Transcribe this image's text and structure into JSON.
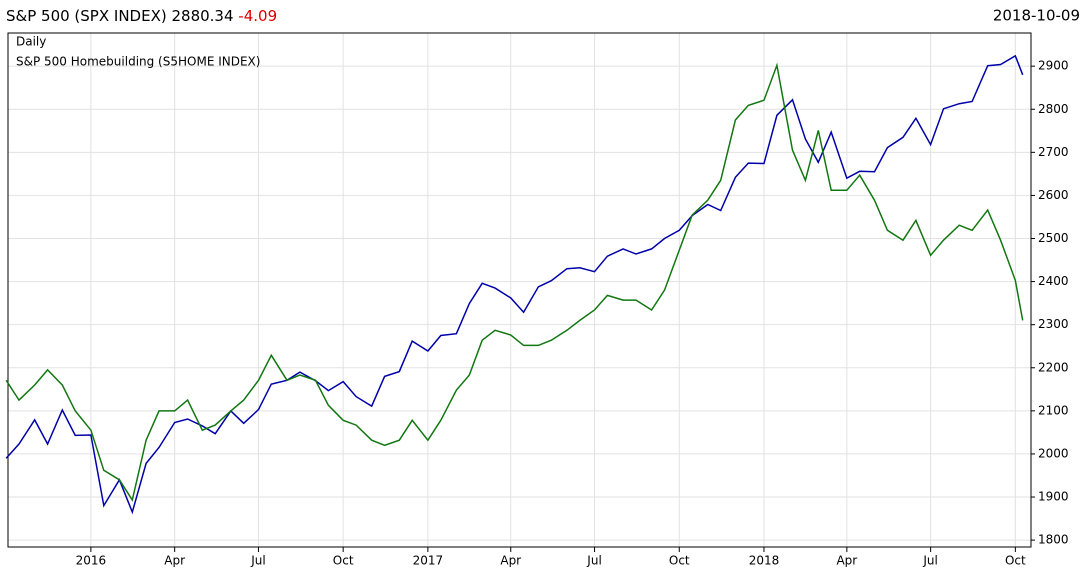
{
  "chart_data": {
    "type": "line",
    "title": "S&P 500 (SPX INDEX)",
    "last": "2880.34",
    "change": "-4.09",
    "change_color": "#dd0000",
    "date": "2018-10-09",
    "x": [
      "2015-10-01",
      "2015-10-15",
      "2015-11-01",
      "2015-11-15",
      "2015-12-01",
      "2015-12-15",
      "2016-01-01",
      "2016-01-15",
      "2016-02-01",
      "2016-02-15",
      "2016-03-01",
      "2016-03-15",
      "2016-04-01",
      "2016-04-15",
      "2016-05-01",
      "2016-05-15",
      "2016-06-01",
      "2016-06-15",
      "2016-07-01",
      "2016-07-15",
      "2016-08-01",
      "2016-08-15",
      "2016-09-01",
      "2016-09-15",
      "2016-10-01",
      "2016-10-15",
      "2016-11-01",
      "2016-11-15",
      "2016-12-01",
      "2016-12-15",
      "2017-01-01",
      "2017-01-15",
      "2017-02-01",
      "2017-02-15",
      "2017-03-01",
      "2017-03-15",
      "2017-04-01",
      "2017-04-15",
      "2017-05-01",
      "2017-05-15",
      "2017-06-01",
      "2017-06-15",
      "2017-07-01",
      "2017-07-15",
      "2017-08-01",
      "2017-08-15",
      "2017-09-01",
      "2017-09-15",
      "2017-10-01",
      "2017-10-15",
      "2017-11-01",
      "2017-11-15",
      "2017-12-01",
      "2017-12-15",
      "2018-01-01",
      "2018-01-15",
      "2018-02-01",
      "2018-02-15",
      "2018-03-01",
      "2018-03-15",
      "2018-04-01",
      "2018-04-15",
      "2018-05-01",
      "2018-05-15",
      "2018-06-01",
      "2018-06-15",
      "2018-07-01",
      "2018-07-15",
      "2018-08-01",
      "2018-08-15",
      "2018-09-01",
      "2018-09-15",
      "2018-10-01",
      "2018-10-09"
    ],
    "series": [
      {
        "name": "Daily",
        "color": "#0000aa",
        "values": [
          1990,
          2023,
          2079,
          2023,
          2102,
          2043,
          2044,
          1880,
          1940,
          1865,
          1978,
          2015,
          2073,
          2081,
          2065,
          2047,
          2100,
          2071,
          2103,
          2162,
          2171,
          2190,
          2170,
          2147,
          2168,
          2133,
          2111,
          2180,
          2191,
          2262,
          2239,
          2275,
          2279,
          2349,
          2396,
          2385,
          2362,
          2329,
          2388,
          2402,
          2430,
          2432,
          2423,
          2459,
          2476,
          2464,
          2476,
          2500,
          2519,
          2553,
          2579,
          2565,
          2642,
          2675,
          2674,
          2786,
          2822,
          2731,
          2677,
          2747,
          2640,
          2656,
          2655,
          2711,
          2735,
          2779,
          2718,
          2801,
          2813,
          2818,
          2901,
          2904,
          2924,
          2880
        ]
      },
      {
        "name": "S&P 500 Homebuilding (S5HOME INDEX)",
        "color": "#117711",
        "values": [
          2171,
          2125,
          2160,
          2195,
          2160,
          2100,
          2055,
          1962,
          1940,
          1893,
          2032,
          2100,
          2100,
          2125,
          2055,
          2067,
          2100,
          2125,
          2171,
          2229,
          2171,
          2183,
          2171,
          2113,
          2078,
          2067,
          2032,
          2020,
          2032,
          2078,
          2032,
          2078,
          2148,
          2183,
          2264,
          2287,
          2276,
          2252,
          2252,
          2264,
          2287,
          2310,
          2334,
          2368,
          2357,
          2357,
          2334,
          2380,
          2473,
          2554,
          2589,
          2635,
          2775,
          2809,
          2821,
          2902,
          2705,
          2635,
          2751,
          2612,
          2612,
          2647,
          2589,
          2519,
          2496,
          2542,
          2461,
          2496,
          2531,
          2519,
          2566,
          2496,
          2403,
          2310
        ]
      }
    ],
    "xlim": [
      "2015-10-03",
      "2018-10-18"
    ],
    "xticks": [
      {
        "value": "2016-01-01",
        "label": "2016"
      },
      {
        "value": "2016-04-01",
        "label": "Apr"
      },
      {
        "value": "2016-07-01",
        "label": "Jul"
      },
      {
        "value": "2016-10-01",
        "label": "Oct"
      },
      {
        "value": "2017-01-01",
        "label": "2017"
      },
      {
        "value": "2017-04-01",
        "label": "Apr"
      },
      {
        "value": "2017-07-01",
        "label": "Jul"
      },
      {
        "value": "2017-10-01",
        "label": "Oct"
      },
      {
        "value": "2018-01-01",
        "label": "2018"
      },
      {
        "value": "2018-04-01",
        "label": "Apr"
      },
      {
        "value": "2018-07-01",
        "label": "Jul"
      },
      {
        "value": "2018-10-01",
        "label": "Oct"
      }
    ],
    "ylim": [
      1784,
      2977
    ],
    "yticks": [
      1800,
      1900,
      2000,
      2100,
      2200,
      2300,
      2400,
      2500,
      2600,
      2700,
      2800,
      2900
    ],
    "grid": true
  }
}
